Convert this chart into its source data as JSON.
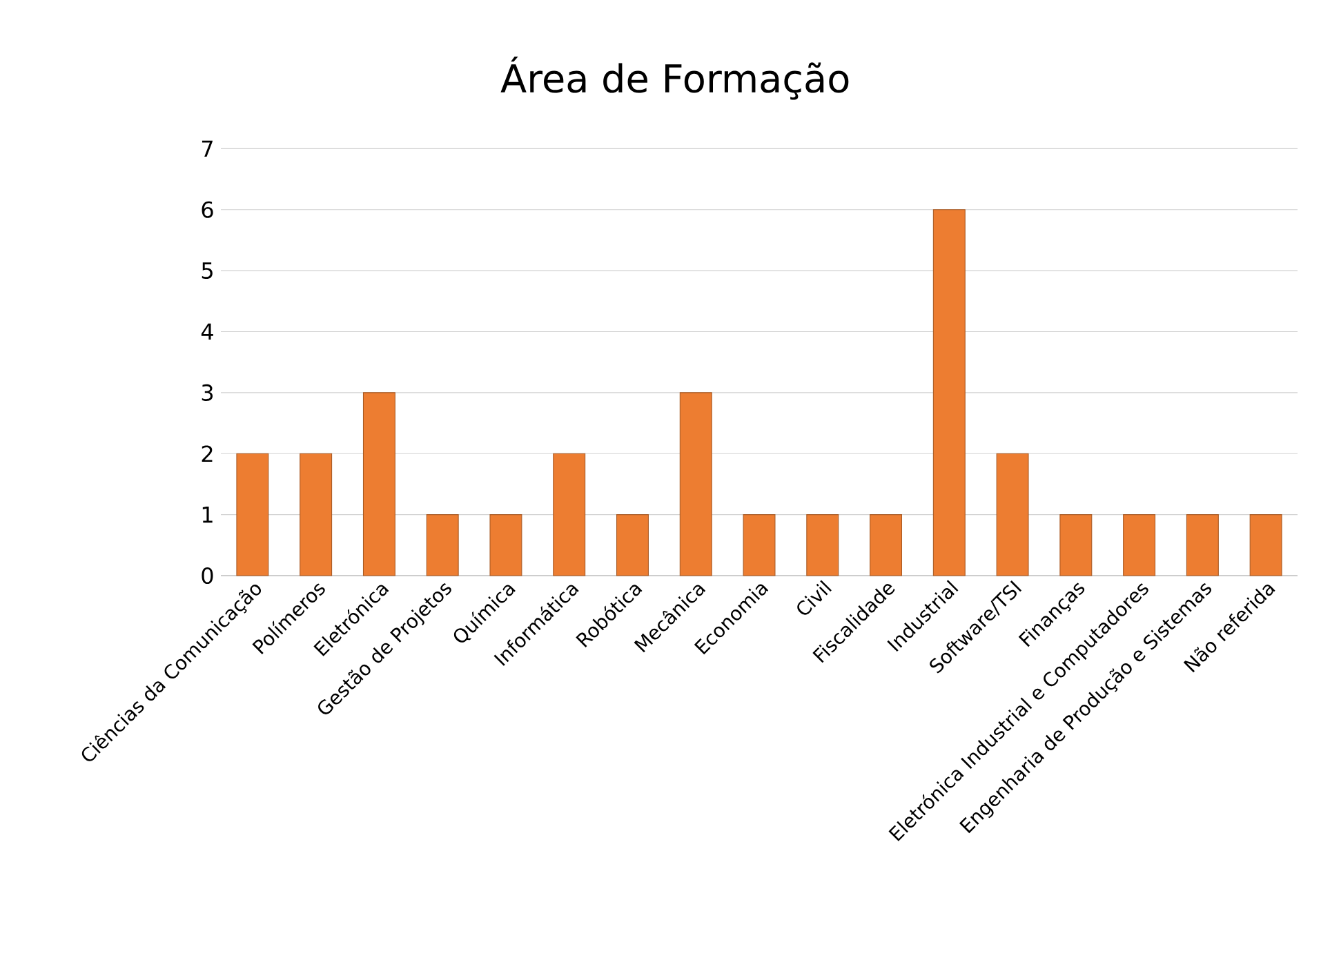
{
  "chart_data": {
    "type": "bar",
    "title": "Área de Formação",
    "categories": [
      "Ciências da Comunicação",
      "Polímeros",
      "Eletrónica",
      "Gestão de Projetos",
      "Química",
      "Informática",
      "Robótica",
      "Mecânica",
      "Economia",
      "Civil",
      "Fiscalidade",
      "Industrial",
      "Software/TSI",
      "Finanças",
      "Eletrónica Industrial e Computadores",
      "Engenharia de Produção e Sistemas",
      "Não referida"
    ],
    "values": [
      2,
      2,
      3,
      1,
      1,
      2,
      1,
      3,
      1,
      1,
      1,
      6,
      2,
      1,
      1,
      1,
      1
    ],
    "color": "#ed7d31",
    "ylim": [
      0,
      7
    ],
    "yticks": [
      0,
      1,
      2,
      3,
      4,
      5,
      6,
      7
    ],
    "grid": "y"
  }
}
